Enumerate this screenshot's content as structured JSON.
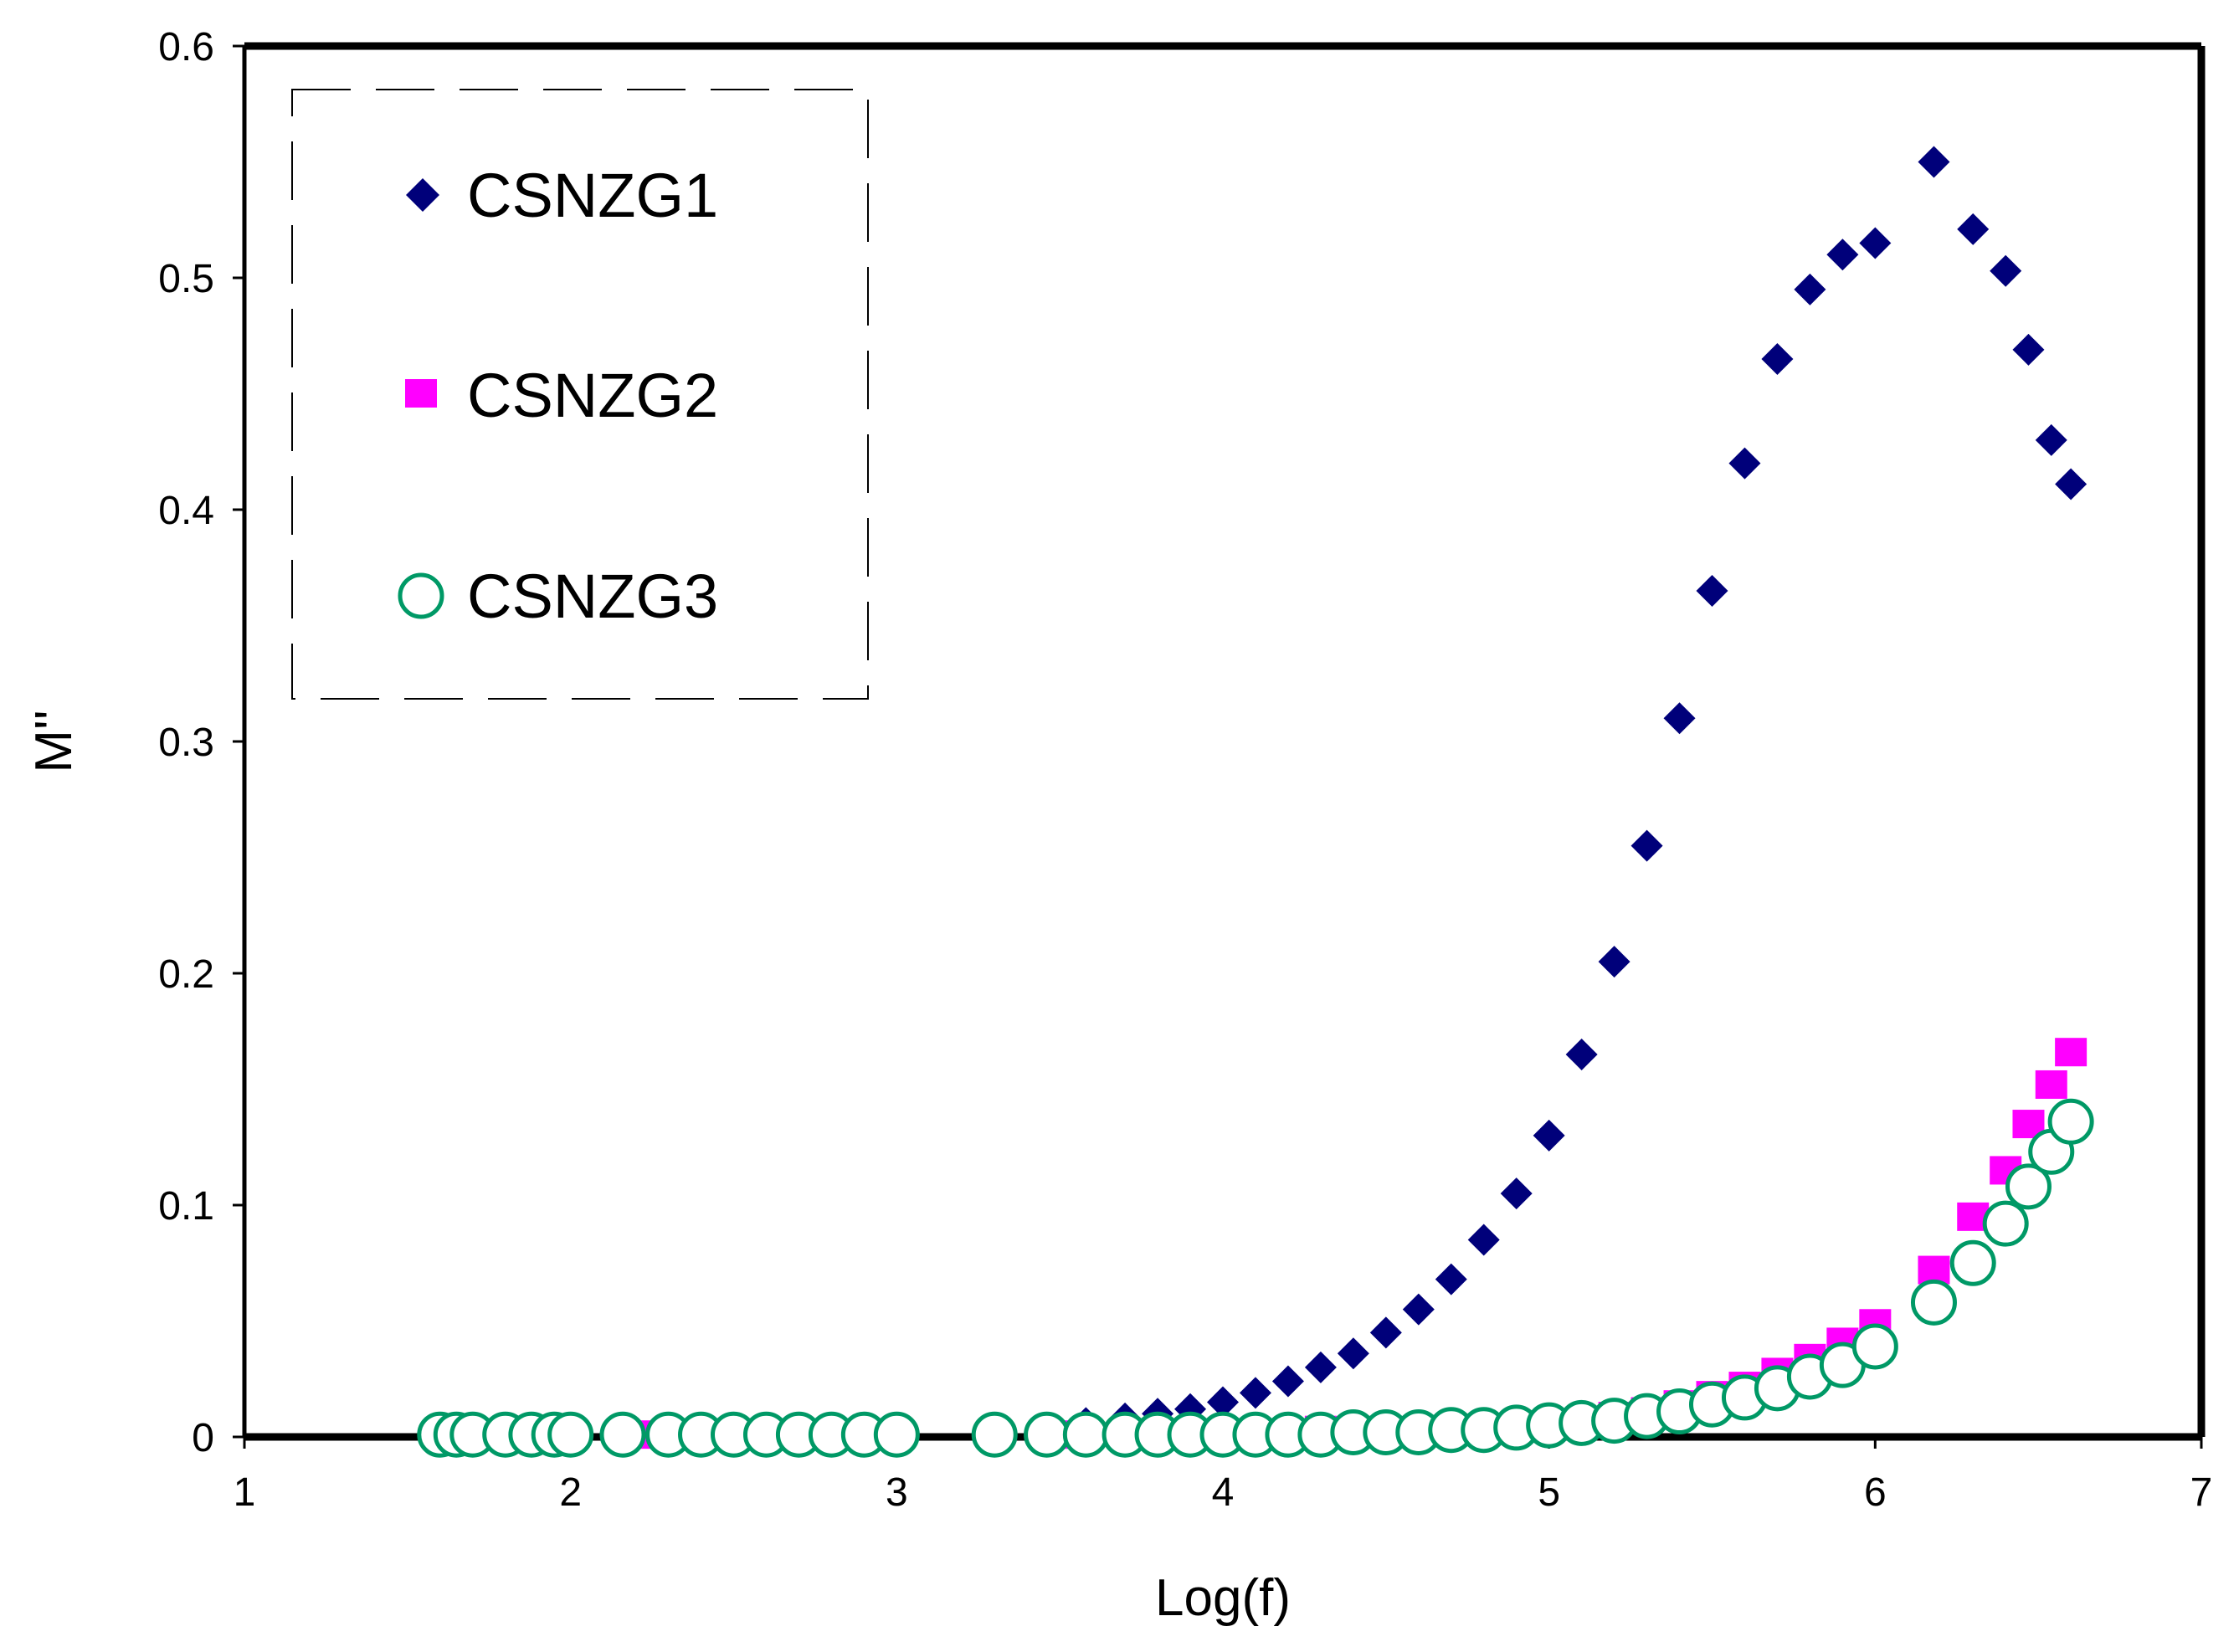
{
  "chart_data": {
    "type": "scatter",
    "title": "",
    "xlabel": "Log(f)",
    "ylabel": "M''",
    "xlim": [
      1,
      7
    ],
    "ylim": [
      0,
      0.6
    ],
    "xticks": [
      "1",
      "2",
      "3",
      "4",
      "5",
      "6",
      "7"
    ],
    "yticks": [
      "0",
      "0.1",
      "0.2",
      "0.3",
      "0.4",
      "0.5",
      "0.6"
    ],
    "grid": false,
    "legend_position": "top-left",
    "series": [
      {
        "name": "CSNZG1",
        "marker": "diamond",
        "color": "#00007a",
        "x": [
          1.6,
          1.7,
          1.8,
          1.9,
          2.0,
          2.2,
          2.4,
          2.6,
          2.8,
          3.0,
          3.3,
          3.46,
          3.58,
          3.7,
          3.8,
          3.9,
          4.0,
          4.1,
          4.2,
          4.3,
          4.4,
          4.5,
          4.6,
          4.7,
          4.8,
          4.9,
          5.0,
          5.1,
          5.2,
          5.3,
          5.4,
          5.5,
          5.6,
          5.7,
          5.8,
          5.9,
          6.0,
          6.18,
          6.3,
          6.4,
          6.47,
          6.54,
          6.6
        ],
        "y": [
          0.0,
          0.0,
          0.0,
          0.0,
          0.0,
          0.0,
          0.0,
          0.0,
          0.0,
          0.0,
          0.002,
          0.004,
          0.006,
          0.008,
          0.01,
          0.012,
          0.015,
          0.019,
          0.024,
          0.03,
          0.036,
          0.045,
          0.055,
          0.068,
          0.085,
          0.105,
          0.13,
          0.165,
          0.205,
          0.255,
          0.31,
          0.365,
          0.42,
          0.465,
          0.495,
          0.51,
          0.515,
          0.55,
          0.521,
          0.503,
          0.469,
          0.43,
          0.411
        ]
      },
      {
        "name": "CSNZG2",
        "marker": "square",
        "color": "#ff00ff",
        "x": [
          1.6,
          1.7,
          1.8,
          1.9,
          2.0,
          2.2,
          2.4,
          2.6,
          2.8,
          3.0,
          3.3,
          3.5,
          3.7,
          3.9,
          4.1,
          4.3,
          4.5,
          4.7,
          4.9,
          5.0,
          5.1,
          5.2,
          5.3,
          5.4,
          5.5,
          5.6,
          5.7,
          5.8,
          5.9,
          6.0,
          6.18,
          6.3,
          6.4,
          6.47,
          6.54,
          6.6
        ],
        "y": [
          0.001,
          0.001,
          0.001,
          0.001,
          0.001,
          0.001,
          0.001,
          0.001,
          0.001,
          0.001,
          0.001,
          0.001,
          0.002,
          0.002,
          0.002,
          0.003,
          0.003,
          0.004,
          0.005,
          0.006,
          0.007,
          0.009,
          0.011,
          0.014,
          0.018,
          0.022,
          0.028,
          0.034,
          0.041,
          0.049,
          0.072,
          0.095,
          0.115,
          0.135,
          0.152,
          0.166
        ]
      },
      {
        "name": "CSNZG3",
        "marker": "circle-open",
        "color": "#009966",
        "x": [
          1.6,
          1.65,
          1.7,
          1.8,
          1.88,
          1.95,
          2.0,
          2.16,
          2.3,
          2.4,
          2.5,
          2.6,
          2.7,
          2.8,
          2.9,
          3.0,
          3.3,
          3.46,
          3.58,
          3.7,
          3.8,
          3.9,
          4.0,
          4.1,
          4.2,
          4.3,
          4.4,
          4.5,
          4.6,
          4.7,
          4.8,
          4.9,
          5.0,
          5.1,
          5.2,
          5.3,
          5.4,
          5.5,
          5.6,
          5.7,
          5.8,
          5.9,
          6.0,
          6.18,
          6.3,
          6.4,
          6.47,
          6.54,
          6.6
        ],
        "y": [
          0.001,
          0.001,
          0.001,
          0.001,
          0.001,
          0.001,
          0.001,
          0.001,
          0.001,
          0.001,
          0.001,
          0.001,
          0.001,
          0.001,
          0.001,
          0.001,
          0.001,
          0.001,
          0.001,
          0.001,
          0.001,
          0.001,
          0.001,
          0.001,
          0.001,
          0.001,
          0.002,
          0.002,
          0.002,
          0.003,
          0.003,
          0.004,
          0.005,
          0.006,
          0.007,
          0.009,
          0.011,
          0.014,
          0.017,
          0.021,
          0.026,
          0.031,
          0.039,
          0.058,
          0.075,
          0.092,
          0.108,
          0.123,
          0.136
        ]
      }
    ]
  }
}
